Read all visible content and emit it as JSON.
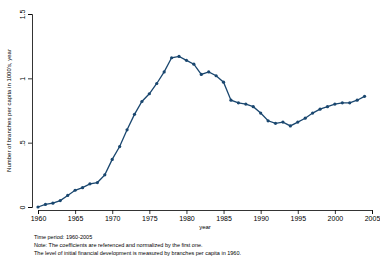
{
  "chart_data": {
    "type": "line",
    "x_label": "year",
    "y_label": "Number of branches per capita in 1000's, year",
    "notes": [
      "Time period: 1960-2005",
      "Note: The coefficients are referenced and normalized by the first one.",
      "The level of initial financial development is measured by branches per capita in 1960."
    ],
    "x": [
      1960,
      1961,
      1962,
      1963,
      1964,
      1965,
      1966,
      1967,
      1968,
      1969,
      1970,
      1971,
      1972,
      1973,
      1974,
      1975,
      1976,
      1977,
      1978,
      1979,
      1980,
      1981,
      1982,
      1983,
      1984,
      1985,
      1986,
      1987,
      1988,
      1989,
      1990,
      1991,
      1992,
      1993,
      1994,
      1995,
      1996,
      1997,
      1998,
      1999,
      2000,
      2001,
      2002,
      2003,
      2004
    ],
    "values": [
      0,
      0.02,
      0.03,
      0.05,
      0.09,
      0.13,
      0.15,
      0.18,
      0.19,
      0.25,
      0.37,
      0.47,
      0.6,
      0.72,
      0.82,
      0.88,
      0.96,
      1.05,
      1.16,
      1.17,
      1.14,
      1.11,
      1.03,
      1.05,
      1.02,
      0.97,
      0.83,
      0.81,
      0.8,
      0.78,
      0.73,
      0.67,
      0.65,
      0.66,
      0.63,
      0.66,
      0.69,
      0.73,
      0.76,
      0.78,
      0.8,
      0.81,
      0.81,
      0.83,
      0.86
    ],
    "color": "#1a476f",
    "marker": "circle",
    "xlim": [
      1960,
      2005
    ],
    "xticks": [
      1960,
      1965,
      1970,
      1975,
      1980,
      1985,
      1990,
      1995,
      2000,
      2005
    ],
    "ylim": [
      0,
      1.5
    ],
    "yticks": [
      0,
      {
        "value": 0.5,
        "label": ".5"
      },
      1,
      1.5
    ],
    "grid": false
  }
}
